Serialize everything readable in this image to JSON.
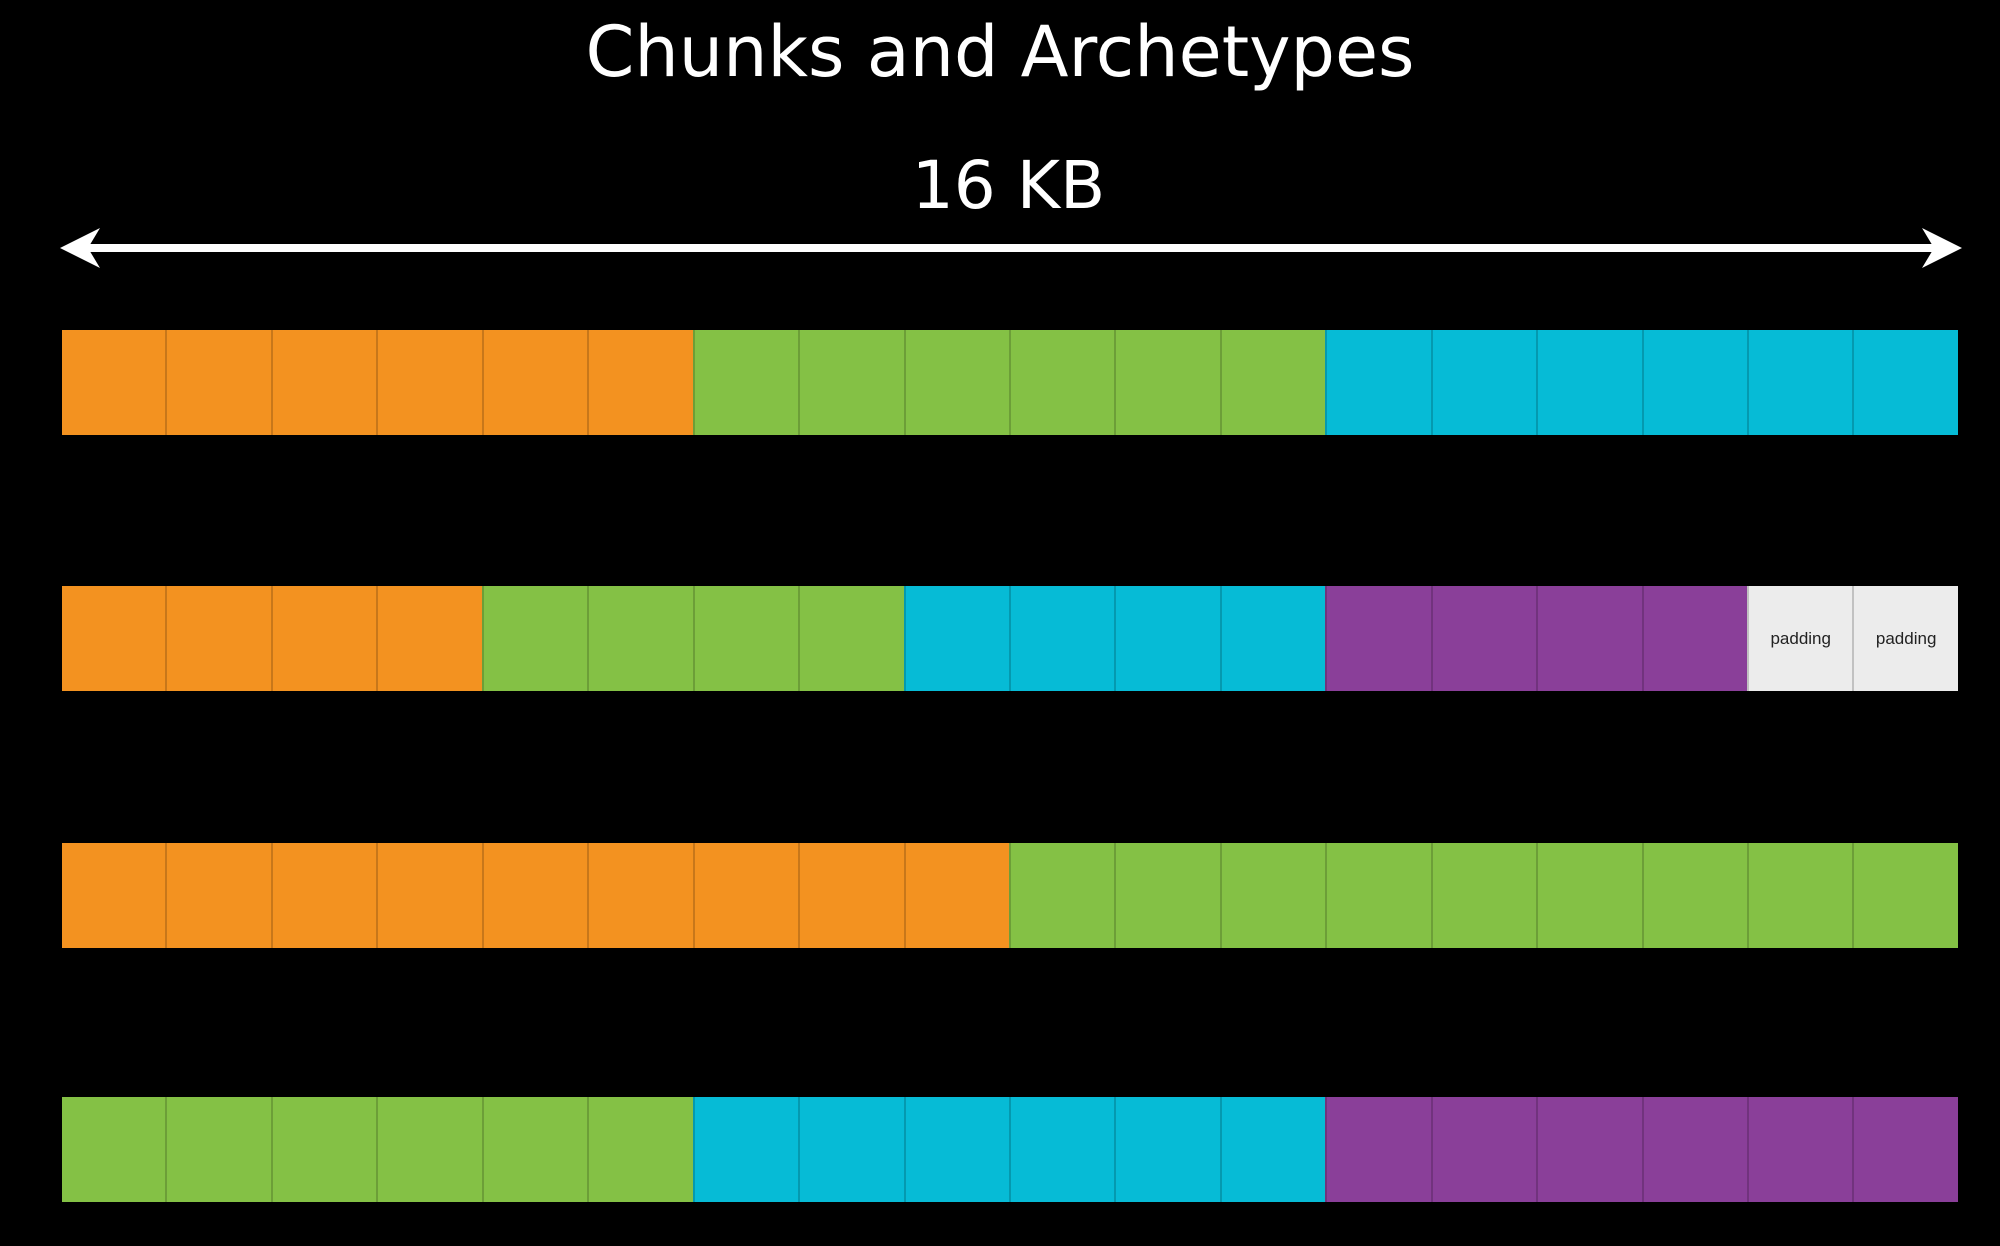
{
  "title": "Chunks and Archetypes",
  "chunk_size_label": "16 KB",
  "colors": {
    "orange": "#f39220",
    "green": "#84c145",
    "cyan": "#06bbd6",
    "purple": "#8a3f99",
    "padding": "#ececec"
  },
  "chunks": [
    {
      "cells": [
        "orange",
        "orange",
        "orange",
        "orange",
        "orange",
        "orange",
        "green",
        "green",
        "green",
        "green",
        "green",
        "green",
        "cyan",
        "cyan",
        "cyan",
        "cyan",
        "cyan",
        "cyan"
      ]
    },
    {
      "cells": [
        "orange",
        "orange",
        "orange",
        "orange",
        "green",
        "green",
        "green",
        "green",
        "cyan",
        "cyan",
        "cyan",
        "cyan",
        "purple",
        "purple",
        "purple",
        "purple",
        "padding",
        "padding"
      ]
    },
    {
      "cells": [
        "orange",
        "orange",
        "orange",
        "orange",
        "orange",
        "orange",
        "orange",
        "orange",
        "orange",
        "green",
        "green",
        "green",
        "green",
        "green",
        "green",
        "green",
        "green",
        "green"
      ]
    },
    {
      "cells": [
        "green",
        "green",
        "green",
        "green",
        "green",
        "green",
        "cyan",
        "cyan",
        "cyan",
        "cyan",
        "cyan",
        "cyan",
        "purple",
        "purple",
        "purple",
        "purple",
        "purple",
        "purple"
      ]
    }
  ],
  "padding_label": "padding"
}
